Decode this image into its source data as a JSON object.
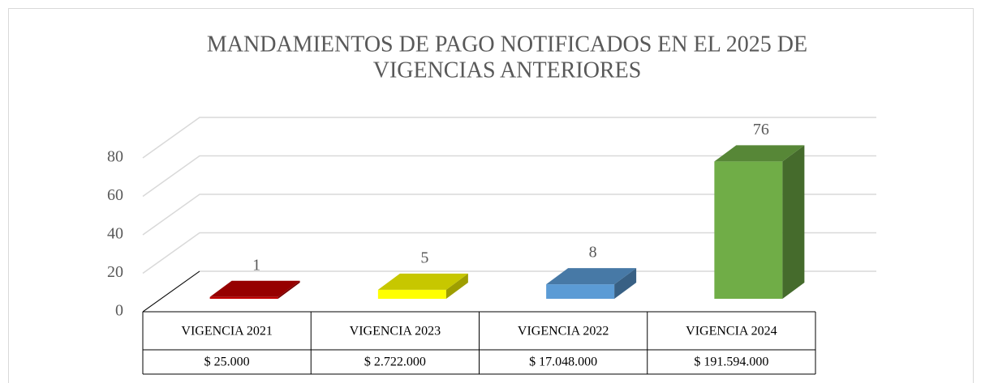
{
  "chart_data": {
    "type": "bar3d",
    "title": [
      "MANDAMIENTOS DE PAGO NOTIFICADOS EN EL 2025 DE",
      "VIGENCIAS ANTERIORES"
    ],
    "categories": [
      "VIGENCIA 2021",
      "VIGENCIA 2023",
      "VIGENCIA 2022",
      "VIGENCIA 2024"
    ],
    "values": [
      1,
      5,
      8,
      76
    ],
    "colors": [
      "#c00000",
      "#ffff00",
      "#5b9bd5",
      "#70ad47"
    ],
    "table_row": [
      "$ 25.000",
      "$ 2.722.000",
      "$ 17.048.000",
      "$ 191.594.000"
    ],
    "ylim": [
      0,
      80
    ],
    "yticks": [
      0,
      20,
      40,
      60,
      80
    ],
    "grid": true
  }
}
